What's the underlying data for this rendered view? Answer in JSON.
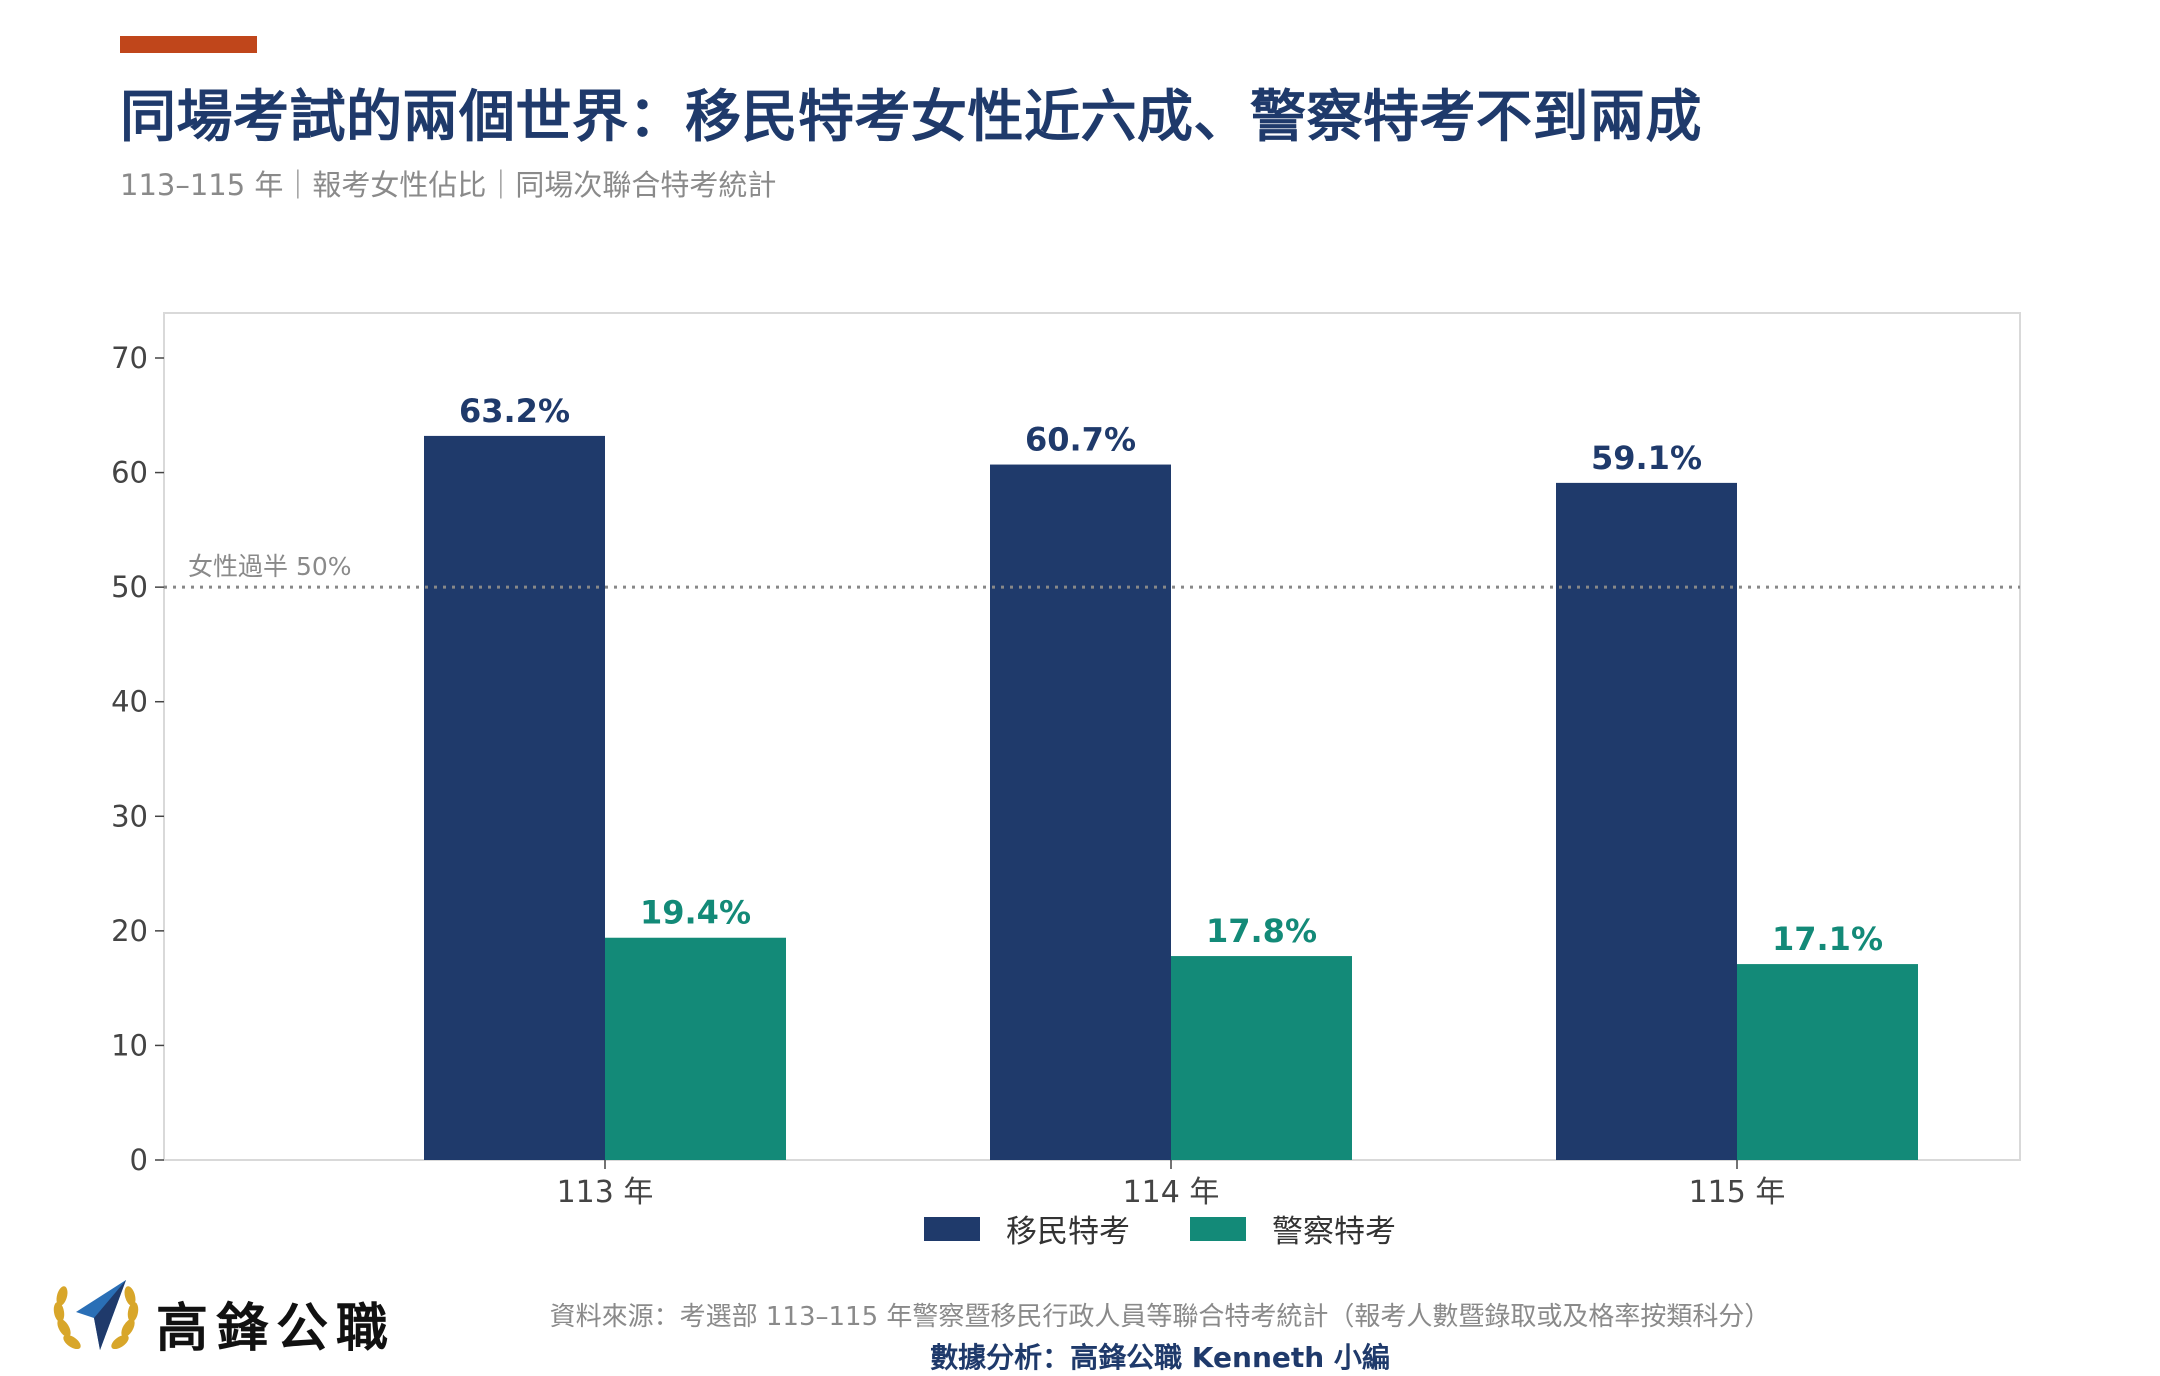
{
  "header": {
    "title": "同場考試的兩個世界：移民特考女性近六成、警察特考不到兩成",
    "subtitle": "113–115 年｜報考女性佔比｜同場次聯合特考統計"
  },
  "colors": {
    "accent": "#c0461b",
    "immigration": "#1f3a6b",
    "police": "#138a78",
    "reference_line": "#888888"
  },
  "chart_data": {
    "type": "bar",
    "categories": [
      "113 年",
      "114 年",
      "115 年"
    ],
    "series": [
      {
        "name": "移民特考",
        "values": [
          63.2,
          60.7,
          59.1
        ],
        "labels": [
          "63.2%",
          "60.7%",
          "59.1%"
        ]
      },
      {
        "name": "警察特考",
        "values": [
          19.4,
          17.8,
          17.1
        ],
        "labels": [
          "19.4%",
          "17.8%",
          "17.1%"
        ]
      }
    ],
    "ylim": [
      0,
      70
    ],
    "yticks": [
      "0",
      "10",
      "20",
      "30",
      "40",
      "50",
      "60",
      "70"
    ],
    "xlabel": "",
    "ylabel": "",
    "reference_line": {
      "value": 50,
      "label": "女性過半 50%"
    },
    "legend_position": "bottom-center",
    "grid": false
  },
  "footer": {
    "brand_name": "高鋒公職",
    "source": "資料來源：考選部 113–115 年警察暨移民行政人員等聯合特考統計（報考人數暨錄取或及格率按類科分）",
    "credit": "數據分析：高鋒公職 Kenneth 小編"
  }
}
